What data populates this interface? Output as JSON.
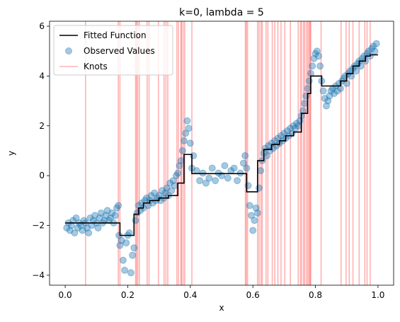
{
  "chart_data": {
    "type": "scatter",
    "title": "k=0, lambda = 5",
    "xlabel": "x",
    "ylabel": "y",
    "xlim": [
      -0.05,
      1.05
    ],
    "ylim": [
      -4.4,
      6.2
    ],
    "xticks": [
      0.0,
      0.2,
      0.4,
      0.6,
      0.8,
      1.0
    ],
    "xtick_labels": [
      "0.0",
      "0.2",
      "0.4",
      "0.6",
      "0.8",
      "1.0"
    ],
    "yticks": [
      -4,
      -2,
      0,
      2,
      4,
      6
    ],
    "ytick_labels": [
      "−4",
      "−2",
      "0",
      "2",
      "4",
      "6"
    ],
    "grid": false,
    "legend_position": "top-left",
    "legend": [
      "Fitted Function",
      "Observed Values",
      "Knots"
    ],
    "colors": {
      "fitted": "#000000",
      "observed": "#1f77b4",
      "knots": "#ff0000"
    },
    "fitted_function": {
      "name": "Fitted Function",
      "x": [
        0.0,
        0.175,
        0.175,
        0.22,
        0.22,
        0.235,
        0.235,
        0.25,
        0.25,
        0.27,
        0.27,
        0.3,
        0.3,
        0.33,
        0.33,
        0.36,
        0.36,
        0.38,
        0.38,
        0.405,
        0.405,
        0.58,
        0.58,
        0.615,
        0.615,
        0.635,
        0.635,
        0.66,
        0.66,
        0.685,
        0.685,
        0.705,
        0.705,
        0.73,
        0.73,
        0.755,
        0.755,
        0.775,
        0.775,
        0.785,
        0.785,
        0.82,
        0.82,
        0.88,
        0.88,
        0.9,
        0.9,
        0.92,
        0.92,
        0.94,
        0.94,
        0.96,
        0.96,
        0.975,
        0.975,
        1.0
      ],
      "y": [
        -1.9,
        -1.9,
        -2.4,
        -2.4,
        -1.55,
        -1.55,
        -1.3,
        -1.3,
        -1.1,
        -1.1,
        -1.0,
        -1.0,
        -0.9,
        -0.9,
        -0.8,
        -0.8,
        -0.3,
        -0.3,
        0.85,
        0.85,
        0.08,
        0.08,
        -0.65,
        -0.65,
        0.6,
        0.6,
        1.05,
        1.05,
        1.25,
        1.25,
        1.4,
        1.4,
        1.6,
        1.6,
        1.75,
        1.75,
        2.5,
        2.5,
        3.3,
        3.3,
        4.0,
        4.0,
        3.6,
        3.6,
        3.8,
        3.8,
        4.1,
        4.1,
        4.4,
        4.4,
        4.6,
        4.6,
        4.8,
        4.8,
        4.85,
        4.85
      ]
    },
    "knots": [
      0.065,
      0.17,
      0.175,
      0.225,
      0.228,
      0.232,
      0.237,
      0.262,
      0.268,
      0.298,
      0.316,
      0.322,
      0.328,
      0.357,
      0.362,
      0.37,
      0.372,
      0.377,
      0.382,
      0.405,
      0.576,
      0.579,
      0.583,
      0.615,
      0.62,
      0.626,
      0.63,
      0.642,
      0.648,
      0.662,
      0.67,
      0.68,
      0.69,
      0.702,
      0.72,
      0.745,
      0.752,
      0.756,
      0.762,
      0.766,
      0.772,
      0.776,
      0.78,
      0.783,
      0.785,
      0.818,
      0.882,
      0.898,
      0.908,
      0.92,
      0.94,
      0.958,
      0.965,
      0.975
    ],
    "observed_values": {
      "name": "Observed Values",
      "x": [
        0.005,
        0.01,
        0.015,
        0.02,
        0.025,
        0.03,
        0.035,
        0.04,
        0.045,
        0.05,
        0.055,
        0.06,
        0.065,
        0.07,
        0.075,
        0.08,
        0.085,
        0.09,
        0.095,
        0.1,
        0.105,
        0.11,
        0.115,
        0.12,
        0.125,
        0.13,
        0.135,
        0.14,
        0.145,
        0.15,
        0.155,
        0.16,
        0.165,
        0.17,
        0.172,
        0.175,
        0.18,
        0.185,
        0.19,
        0.195,
        0.2,
        0.205,
        0.21,
        0.215,
        0.22,
        0.225,
        0.23,
        0.235,
        0.24,
        0.245,
        0.25,
        0.255,
        0.26,
        0.265,
        0.27,
        0.275,
        0.28,
        0.285,
        0.29,
        0.295,
        0.3,
        0.305,
        0.31,
        0.315,
        0.32,
        0.325,
        0.33,
        0.335,
        0.34,
        0.345,
        0.35,
        0.355,
        0.36,
        0.365,
        0.37,
        0.375,
        0.38,
        0.385,
        0.39,
        0.395,
        0.4,
        0.405,
        0.41,
        0.42,
        0.43,
        0.44,
        0.45,
        0.46,
        0.47,
        0.48,
        0.49,
        0.5,
        0.51,
        0.52,
        0.53,
        0.54,
        0.55,
        0.56,
        0.57,
        0.575,
        0.58,
        0.585,
        0.59,
        0.595,
        0.6,
        0.605,
        0.61,
        0.615,
        0.62,
        0.625,
        0.63,
        0.635,
        0.64,
        0.645,
        0.65,
        0.655,
        0.66,
        0.665,
        0.67,
        0.675,
        0.68,
        0.685,
        0.69,
        0.695,
        0.7,
        0.705,
        0.71,
        0.715,
        0.72,
        0.725,
        0.73,
        0.735,
        0.74,
        0.745,
        0.75,
        0.755,
        0.76,
        0.765,
        0.77,
        0.775,
        0.78,
        0.785,
        0.79,
        0.795,
        0.8,
        0.805,
        0.81,
        0.815,
        0.82,
        0.825,
        0.83,
        0.835,
        0.84,
        0.845,
        0.85,
        0.855,
        0.86,
        0.865,
        0.87,
        0.875,
        0.88,
        0.885,
        0.89,
        0.895,
        0.9,
        0.905,
        0.91,
        0.915,
        0.92,
        0.925,
        0.93,
        0.935,
        0.94,
        0.945,
        0.95,
        0.955,
        0.96,
        0.965,
        0.97,
        0.975,
        0.98,
        0.985,
        0.99,
        0.995
      ],
      "y": [
        -2.1,
        -1.9,
        -2.2,
        -2.0,
        -1.8,
        -2.3,
        -1.7,
        -2.1,
        -1.9,
        -2.0,
        -2.2,
        -1.8,
        -1.9,
        -2.1,
        -2.3,
        -1.7,
        -2.0,
        -1.8,
        -1.6,
        -1.9,
        -2.1,
        -1.7,
        -1.5,
        -1.9,
        -1.8,
        -1.6,
        -1.4,
        -1.8,
        -1.7,
        -1.5,
        -1.9,
        -1.6,
        -1.3,
        -1.2,
        -2.4,
        -2.8,
        -2.6,
        -3.4,
        -3.8,
        -2.7,
        -2.4,
        -2.3,
        -3.9,
        -3.2,
        -2.9,
        -1.8,
        -1.5,
        -1.2,
        -1.4,
        -1.1,
        -1.3,
        -1.0,
        -0.9,
        -1.2,
        -1.0,
        -0.8,
        -1.1,
        -0.7,
        -1.0,
        -0.9,
        -0.8,
        -1.0,
        -0.6,
        -0.9,
        -0.7,
        -0.5,
        -0.8,
        -0.3,
        -0.6,
        -0.2,
        -0.4,
        0.0,
        0.1,
        0.4,
        0.6,
        1.0,
        1.4,
        1.7,
        2.2,
        1.9,
        1.3,
        0.3,
        0.8,
        0.2,
        -0.2,
        0.1,
        -0.3,
        -0.1,
        0.3,
        -0.2,
        0.1,
        0.0,
        0.4,
        -0.1,
        0.2,
        0.3,
        -0.2,
        0.1,
        0.5,
        0.8,
        0.3,
        -0.4,
        -1.2,
        -1.6,
        -2.2,
        -1.8,
        -1.3,
        -1.5,
        -0.5,
        0.2,
        0.6,
        0.9,
        1.1,
        0.8,
        1.2,
        1.0,
        1.3,
        1.1,
        1.4,
        1.2,
        1.5,
        1.3,
        1.6,
        1.4,
        1.7,
        1.5,
        1.8,
        1.6,
        1.9,
        1.7,
        2.0,
        1.9,
        2.1,
        2.0,
        2.2,
        2.4,
        2.6,
        2.9,
        3.2,
        3.5,
        3.8,
        4.1,
        4.4,
        4.7,
        4.9,
        5.0,
        4.8,
        4.4,
        3.8,
        3.4,
        3.1,
        2.8,
        3.0,
        3.2,
        3.4,
        3.5,
        3.3,
        3.6,
        3.4,
        3.7,
        3.5,
        3.8,
        3.9,
        4.0,
        3.7,
        4.1,
        4.2,
        4.0,
        4.3,
        4.4,
        4.2,
        4.5,
        4.6,
        4.4,
        4.7,
        4.8,
        4.6,
        4.9,
        5.0,
        4.8,
        5.1,
        5.2,
        5.0,
        5.3
      ]
    }
  }
}
